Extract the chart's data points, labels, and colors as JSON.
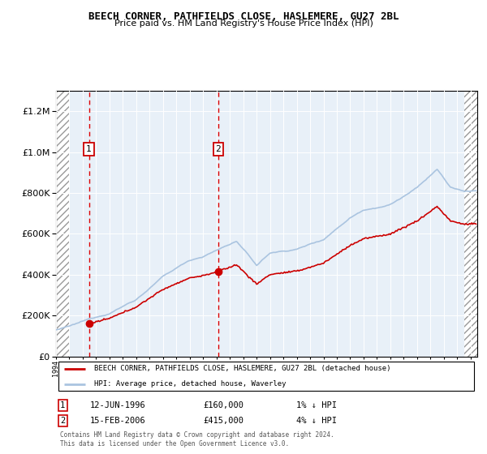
{
  "title": "BEECH CORNER, PATHFIELDS CLOSE, HASLEMERE, GU27 2BL",
  "subtitle": "Price paid vs. HM Land Registry's House Price Index (HPI)",
  "sale1_year": 1996.46,
  "sale1_price": 160000,
  "sale2_year": 2006.12,
  "sale2_price": 415000,
  "hpi_line_color": "#aac4e0",
  "price_line_color": "#cc0000",
  "dashed_line_color": "#dd0000",
  "ylim_min": 0,
  "ylim_max": 1300000,
  "bg_color": "#e8f0f8",
  "xmin": 1994.0,
  "xmax": 2025.5,
  "legend_line1": "BEECH CORNER, PATHFIELDS CLOSE, HASLEMERE, GU27 2BL (detached house)",
  "legend_line2": "HPI: Average price, detached house, Waverley",
  "ann1_date": "12-JUN-1996",
  "ann1_price": "£160,000",
  "ann1_rel": "1% ↓ HPI",
  "ann2_date": "15-FEB-2006",
  "ann2_price": "£415,000",
  "ann2_rel": "4% ↓ HPI",
  "footer": "Contains HM Land Registry data © Crown copyright and database right 2024.\nThis data is licensed under the Open Government Licence v3.0."
}
